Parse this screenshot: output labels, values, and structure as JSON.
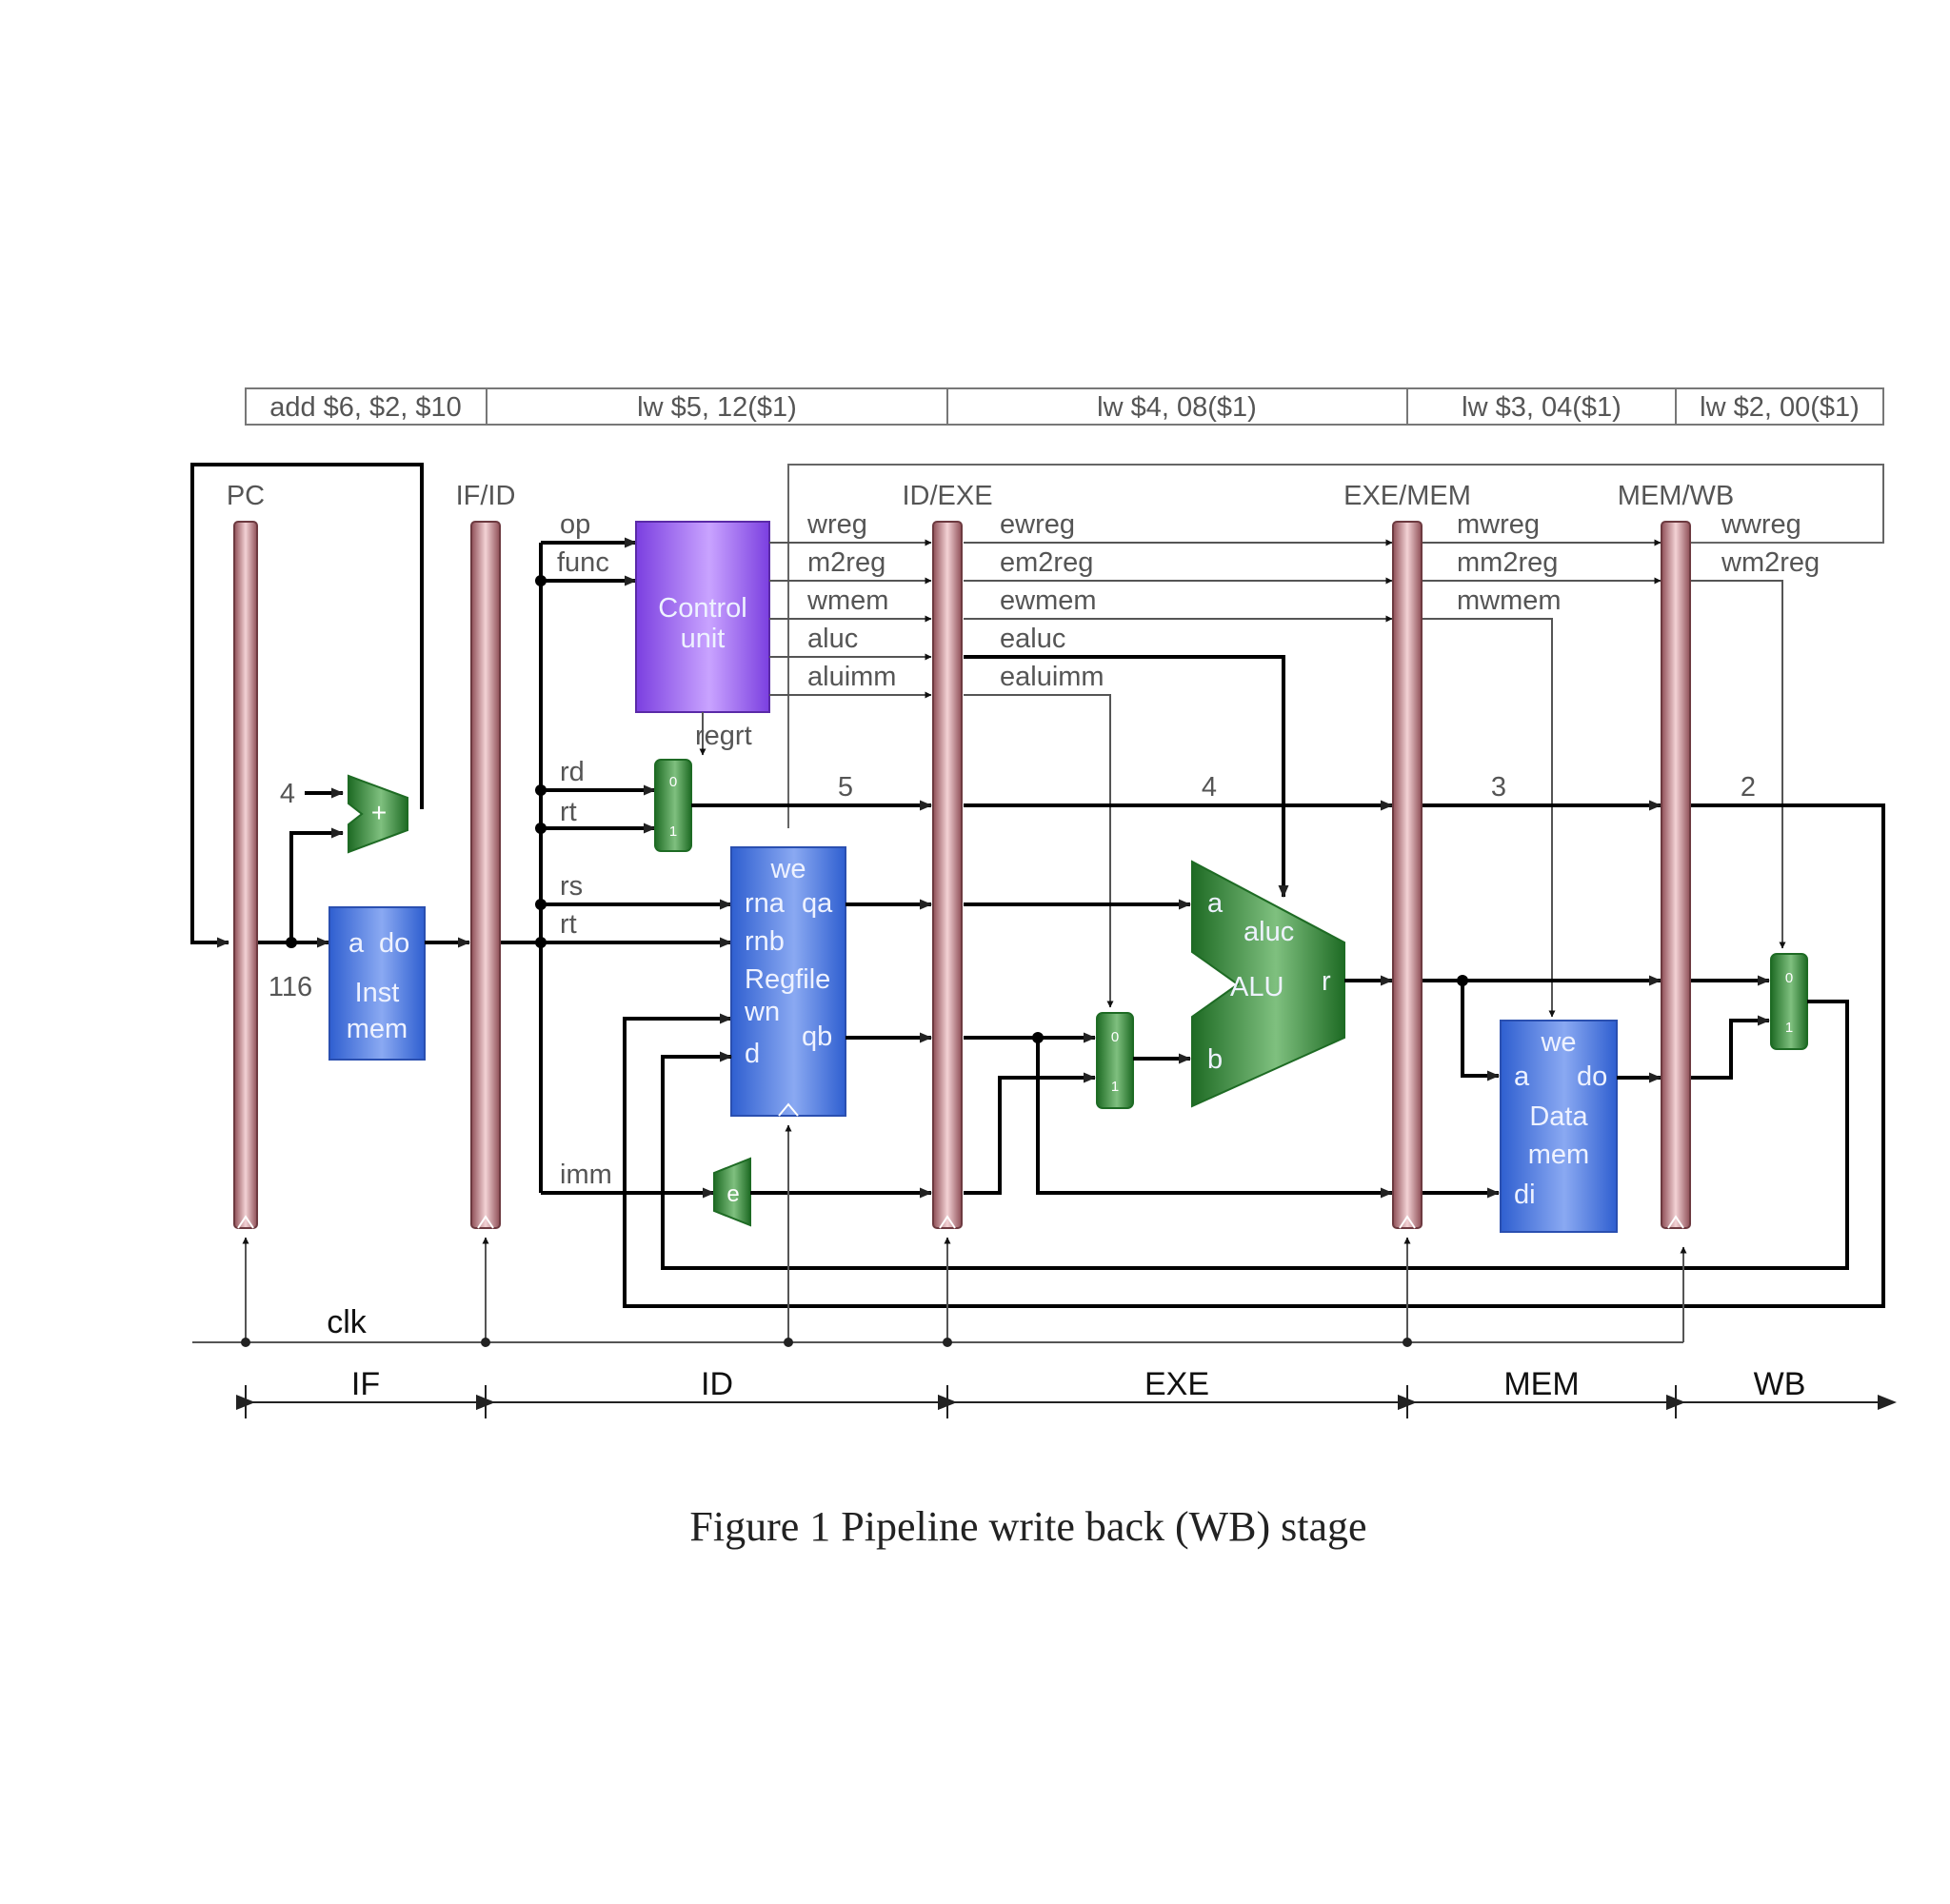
{
  "instructions": [
    "add $6, $2, $10",
    "lw $5, 12($1)",
    "lw $4, 08($1)",
    "lw $3, 04($1)",
    "lw $2, 00($1)"
  ],
  "registers": {
    "pc": "PC",
    "if_id": "IF/ID",
    "id_exe": "ID/EXE",
    "exe_mem": "EXE/MEM",
    "mem_wb": "MEM/WB"
  },
  "control_unit": {
    "line1": "Control",
    "line2": "unit"
  },
  "control_inputs": {
    "op": "op",
    "func": "func"
  },
  "control_outputs": {
    "id": [
      "wreg",
      "m2reg",
      "wmem",
      "aluc",
      "aluimm"
    ],
    "exe": [
      "ewreg",
      "em2reg",
      "ewmem",
      "ealuc",
      "ealuimm"
    ],
    "mem": [
      "mwreg",
      "mm2reg",
      "mwmem"
    ],
    "wb": [
      "wwreg",
      "wm2reg"
    ]
  },
  "regrt": "regrt",
  "fields": {
    "rd": "rd",
    "rt": "rt",
    "rs": "rs",
    "rt2": "rt",
    "imm": "imm"
  },
  "pc_increment": "4",
  "pc_value": "116",
  "dest_regs": [
    "5",
    "4",
    "3",
    "2"
  ],
  "inst_mem": {
    "a": "a",
    "do": "do",
    "line1": "Inst",
    "line2": "mem"
  },
  "regfile": {
    "we": "we",
    "rna": "rna",
    "qa": "qa",
    "rnb": "rnb",
    "name": "Regfile",
    "wn": "wn",
    "qb": "qb",
    "d": "d"
  },
  "alu": {
    "a": "a",
    "aluc": "aluc",
    "name": "ALU",
    "r": "r",
    "b": "b"
  },
  "data_mem": {
    "we": "we",
    "a": "a",
    "do": "do",
    "line1": "Data",
    "line2": "mem",
    "di": "di"
  },
  "adder": "+",
  "extender": "e",
  "mux": {
    "zero": "0",
    "one": "1"
  },
  "clk": "clk",
  "stages": [
    "IF",
    "ID",
    "EXE",
    "MEM",
    "WB"
  ],
  "caption": "Figure 1 Pipeline write back (WB) stage",
  "colors": {
    "pipe_register": "#b87a80",
    "memory_block": "#5c86e0",
    "control": "#a070e8",
    "logic": "#3f8a3f"
  }
}
